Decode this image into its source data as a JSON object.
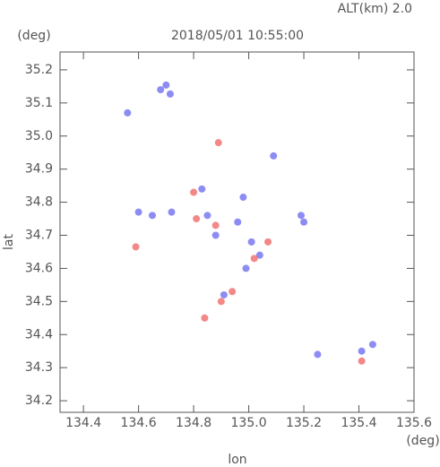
{
  "chart_data": {
    "type": "scatter",
    "title": "2018/05/01 10:55:00",
    "subtitle": "ALT(km) 2.0",
    "y_unit": "(deg)",
    "x_unit": "(deg)",
    "ylabel": "lat",
    "xlabel": "lon",
    "xlim": [
      134.315,
      135.6
    ],
    "ylim": [
      34.165,
      35.254
    ],
    "xticks": [
      134.4,
      134.6,
      134.8,
      {
        "value": 135,
        "label": "135.0"
      },
      135.2,
      135.4,
      135.6
    ],
    "yticks": [
      34.2,
      34.3,
      34.4,
      34.5,
      34.6,
      34.7,
      34.8,
      34.9,
      {
        "value": 35,
        "label": "35.0"
      },
      35.1,
      35.2
    ],
    "series": [
      {
        "color": "#6f6ff0",
        "x": [
          134.7,
          134.715,
          134.68,
          134.56,
          134.65,
          134.6,
          134.72,
          134.83,
          134.85,
          134.96,
          134.98,
          134.88,
          135.01,
          135.04,
          134.99,
          134.91,
          135.19,
          135.2,
          135.41,
          135.45,
          135.09,
          135.25
        ],
        "values": [
          35.154,
          35.127,
          35.14,
          35.07,
          34.76,
          34.77,
          34.77,
          34.84,
          34.76,
          34.74,
          34.815,
          34.7,
          34.68,
          34.64,
          34.6,
          34.52,
          34.76,
          34.74,
          34.35,
          34.37,
          34.94,
          34.34
        ]
      },
      {
        "color": "#f06a6a",
        "x": [
          134.89,
          134.8,
          134.81,
          135.07,
          135.02,
          134.94,
          134.9,
          134.84,
          134.59,
          135.41,
          134.88
        ],
        "values": [
          34.98,
          34.83,
          34.75,
          34.68,
          34.63,
          34.53,
          34.5,
          34.45,
          34.665,
          34.32,
          34.73
        ]
      }
    ]
  }
}
